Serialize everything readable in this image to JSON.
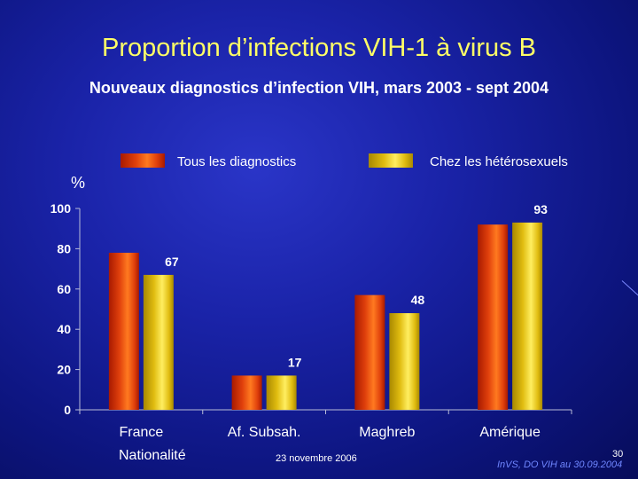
{
  "slide": {
    "title": "Proportion d’infections VIH-1 à virus B",
    "subtitle": "Nouveaux diagnostics d’infection VIH, mars 2003 - sept 2004",
    "unit": "%",
    "x_title": "Nationalité",
    "footer_date": "23 novembre 2006",
    "footer_source": "InVS, DO VIH au 30.09.2004",
    "page_number": "30"
  },
  "colors": {
    "series1": "#e0400c",
    "series2": "#e8c416",
    "title": "#ffff66",
    "background": "#1a23a8"
  },
  "chart_data": {
    "type": "bar",
    "categories": [
      "France",
      "Af. Subsah.",
      "Maghreb",
      "Amérique"
    ],
    "series": [
      {
        "name": "Tous les diagnostics",
        "values": [
          78,
          17,
          57,
          92
        ]
      },
      {
        "name": "Chez les hétérosexuels",
        "values": [
          67,
          17,
          48,
          93
        ]
      }
    ],
    "data_labels": [
      "67",
      "17",
      "48",
      "93"
    ],
    "ylim": [
      0,
      100
    ],
    "yticks": [
      0,
      20,
      40,
      60,
      80,
      100
    ],
    "ylabel": "%",
    "xlabel": "Nationalité",
    "legend_position": "top",
    "grid": false
  }
}
